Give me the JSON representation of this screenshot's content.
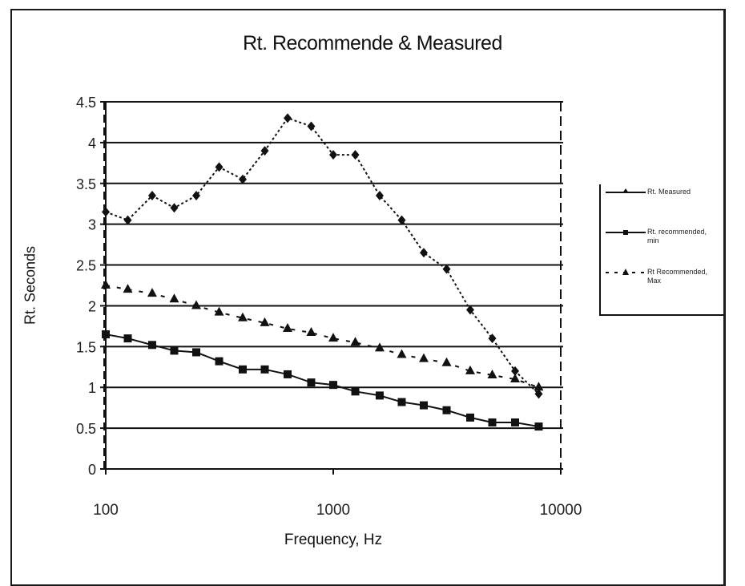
{
  "chart_data": {
    "type": "line",
    "title": "Rt. Recommende & Measured",
    "xlabel": "Frequency, Hz",
    "ylabel": "Rt. Seconds",
    "xscale": "log",
    "xlim": [
      100,
      10000
    ],
    "ylim": [
      0,
      4.5
    ],
    "xticks": [
      "100",
      "1000",
      "10000"
    ],
    "yticks": [
      "0",
      "0.5",
      "1",
      "1.5",
      "2",
      "2.5",
      "3",
      "3.5",
      "4",
      "4.5"
    ],
    "grid": "horizontal",
    "legend_position": "right",
    "x": [
      100,
      125,
      160,
      200,
      250,
      315,
      400,
      500,
      630,
      800,
      1000,
      1250,
      1600,
      2000,
      2500,
      3150,
      4000,
      5000,
      6300,
      8000
    ],
    "series": [
      {
        "name": "Rt. Measured",
        "style": "dotted",
        "marker": "diamond",
        "values": [
          3.15,
          3.05,
          3.35,
          3.2,
          3.35,
          3.7,
          3.55,
          3.9,
          4.3,
          4.2,
          3.85,
          3.85,
          3.35,
          3.05,
          2.65,
          2.45,
          1.95,
          1.6,
          1.2,
          0.92
        ]
      },
      {
        "name": "Rt. recommended, min",
        "style": "solid",
        "marker": "square",
        "values": [
          1.65,
          1.6,
          1.52,
          1.45,
          1.43,
          1.32,
          1.22,
          1.22,
          1.16,
          1.06,
          1.03,
          0.95,
          0.9,
          0.82,
          0.78,
          0.72,
          0.63,
          0.57,
          0.57,
          0.52
        ]
      },
      {
        "name": "Rt Recommended, Max",
        "style": "dashed",
        "marker": "triangle",
        "values": [
          2.25,
          2.2,
          2.15,
          2.08,
          2.0,
          1.92,
          1.85,
          1.79,
          1.72,
          1.67,
          1.6,
          1.55,
          1.48,
          1.4,
          1.35,
          1.3,
          1.2,
          1.15,
          1.1,
          1.0
        ]
      }
    ]
  },
  "labels": {
    "title": "Rt. Recommende & Measured",
    "xlabel": "Frequency, Hz",
    "ylabel": "Rt. Seconds"
  },
  "legend": {
    "items": [
      {
        "label": "Rt. Measured"
      },
      {
        "label": "Rt. recommended, min"
      },
      {
        "label": "Rt Recommended, Max"
      }
    ]
  }
}
